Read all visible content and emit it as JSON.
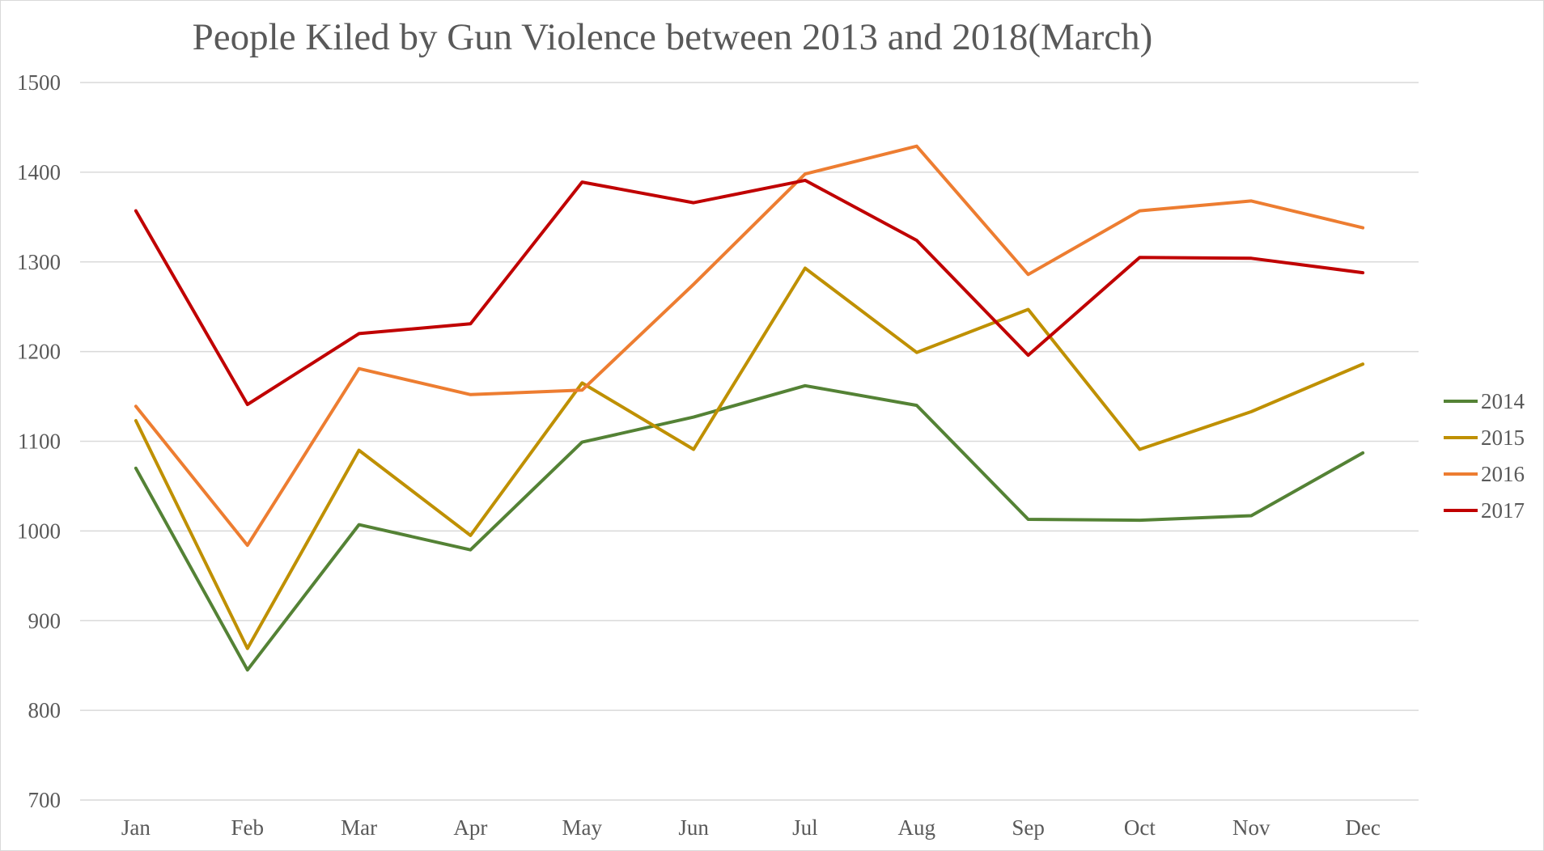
{
  "chart_data": {
    "type": "line",
    "title": "People Kiled by Gun Violence between 2013 and 2018(March)",
    "xlabel": "",
    "ylabel": "",
    "categories": [
      "Jan",
      "Feb",
      "Mar",
      "Apr",
      "May",
      "Jun",
      "Jul",
      "Aug",
      "Sep",
      "Oct",
      "Nov",
      "Dec"
    ],
    "ylim": [
      700,
      1500
    ],
    "yticks": [
      700,
      800,
      900,
      1000,
      1100,
      1200,
      1300,
      1400,
      1500
    ],
    "grid": true,
    "legend_position": "right",
    "series": [
      {
        "name": "2014",
        "color": "#548235",
        "values": [
          1070,
          845,
          1007,
          979,
          1099,
          1127,
          1162,
          1140,
          1013,
          1012,
          1017,
          1087
        ]
      },
      {
        "name": "2015",
        "color": "#bf9000",
        "values": [
          1123,
          869,
          1090,
          995,
          1165,
          1091,
          1293,
          1199,
          1247,
          1091,
          1133,
          1186
        ]
      },
      {
        "name": "2016",
        "color": "#ed7d31",
        "values": [
          1139,
          984,
          1181,
          1152,
          1157,
          1275,
          1398,
          1429,
          1286,
          1357,
          1368,
          1338
        ]
      },
      {
        "name": "2017",
        "color": "#c00000",
        "values": [
          1357,
          1141,
          1220,
          1231,
          1389,
          1366,
          1391,
          1324,
          1196,
          1305,
          1304,
          1288
        ]
      }
    ]
  }
}
